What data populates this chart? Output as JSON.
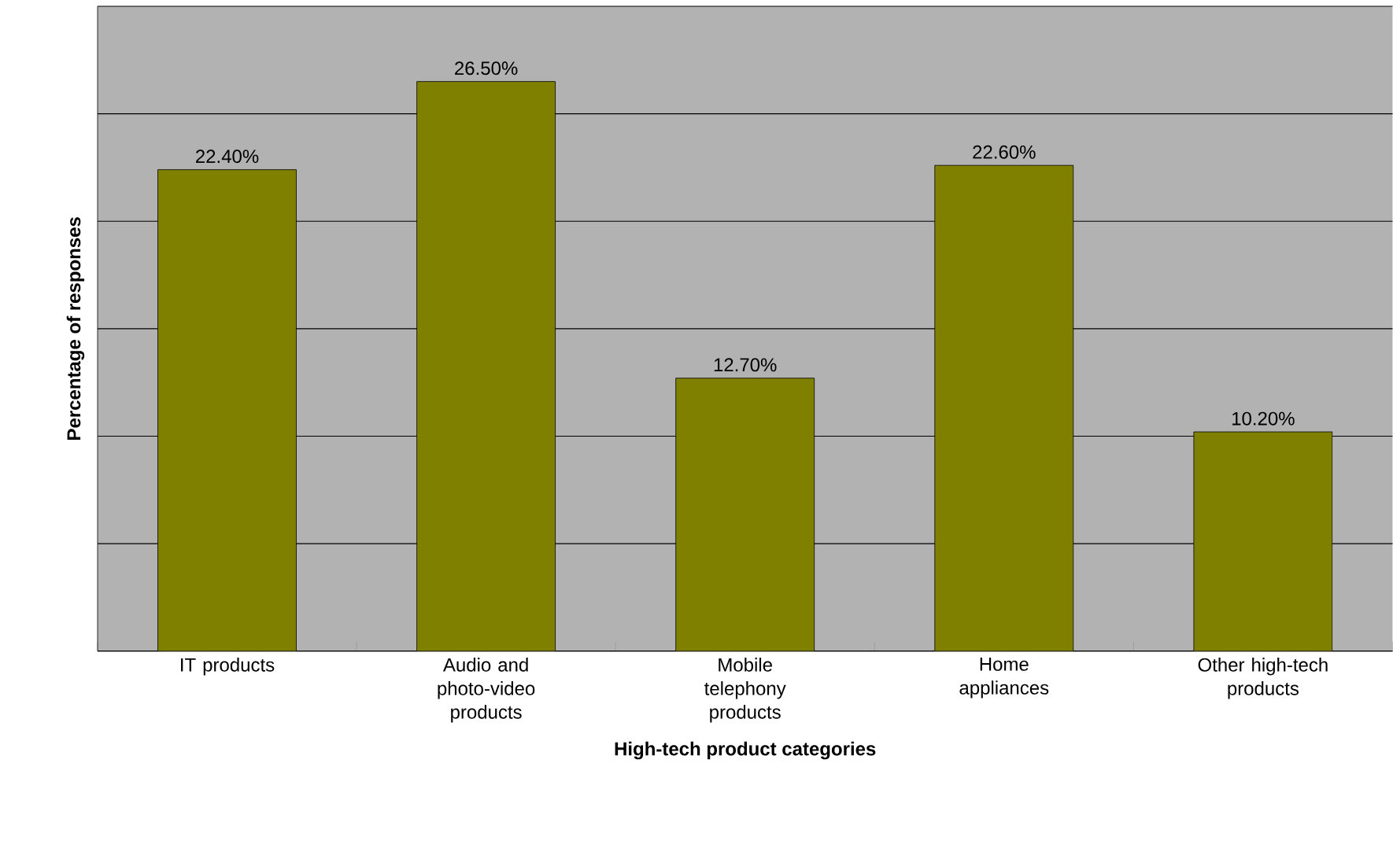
{
  "chart_data": {
    "type": "bar",
    "xlabel": "High-tech product categories",
    "ylabel": "Percentage of responses",
    "categories": [
      "IT products",
      "Audio and photo-video products",
      "Mobile telephony products",
      "Home appliances",
      "Other high-tech products"
    ],
    "values": [
      22.4,
      26.5,
      12.7,
      22.6,
      10.2
    ],
    "value_labels": [
      "22.40%",
      "26.50%",
      "12.70%",
      "22.60%",
      "10.20%"
    ],
    "color": "#808000",
    "ylim": [
      0,
      30
    ],
    "yticks": [
      {
        "value": 0,
        "label": null
      },
      {
        "value": 5,
        "label": null
      },
      {
        "value": 10,
        "label": null
      },
      {
        "value": 15,
        "label": null
      },
      {
        "value": 20,
        "label": null
      },
      {
        "value": 25,
        "label": null
      },
      {
        "value": 30,
        "label": null
      }
    ],
    "grid": "y",
    "tick_labels": "x"
  }
}
